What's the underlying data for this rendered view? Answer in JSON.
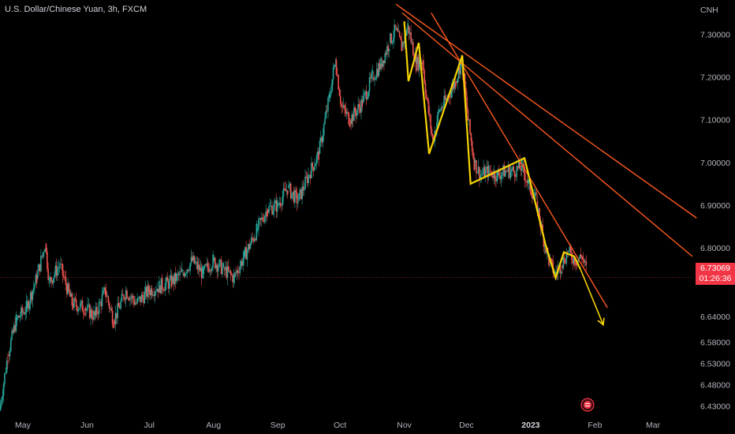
{
  "header": {
    "title": "U.S. Dollar/Chinese Yuan, 3h, FXCM"
  },
  "price_badge": {
    "price": "6.73069",
    "countdown": "01:26:36",
    "color": "#f23645"
  },
  "colors": {
    "background": "#000000",
    "candle_up": "#26a69a",
    "candle_down": "#ef5350",
    "wave": "#f5d300",
    "trendline": "#ff5a1f",
    "axis_text": "#b2b5be",
    "event_icon": "#f23645"
  },
  "icons": {
    "event": "flag-icon"
  },
  "chart_data": {
    "type": "candlestick",
    "title": "U.S. Dollar/Chinese Yuan, 3h, FXCM",
    "y_axis": {
      "unit": "CNH",
      "ticks": [
        "7.30000",
        "7.20000",
        "7.10000",
        "7.00000",
        "6.90000",
        "6.80000",
        "6.73069",
        "6.64000",
        "6.58000",
        "6.53000",
        "6.48000",
        "6.43000"
      ],
      "tick_values": [
        7.3,
        7.2,
        7.1,
        7.0,
        6.9,
        6.8,
        6.73,
        6.64,
        6.58,
        6.53,
        6.48,
        6.43
      ],
      "range": [
        6.42,
        7.38
      ],
      "position": "right"
    },
    "x_axis": {
      "ticks": [
        "May",
        "Jun",
        "Jul",
        "Aug",
        "Sep",
        "Oct",
        "Nov",
        "Dec",
        "2023",
        "Feb",
        "Mar"
      ],
      "tick_dates": [
        "2022-05-01",
        "2022-06-01",
        "2022-07-01",
        "2022-08-01",
        "2022-09-01",
        "2022-10-01",
        "2022-11-01",
        "2022-12-01",
        "2023-01-01",
        "2023-02-01",
        "2023-03-01"
      ],
      "range": [
        "2022-04-20",
        "2023-03-20"
      ]
    },
    "price_path": [
      [
        "2022-04-20",
        6.42
      ],
      [
        "2022-04-24",
        6.55
      ],
      [
        "2022-04-28",
        6.63
      ],
      [
        "2022-05-03",
        6.66
      ],
      [
        "2022-05-08",
        6.73
      ],
      [
        "2022-05-12",
        6.81
      ],
      [
        "2022-05-14",
        6.72
      ],
      [
        "2022-05-19",
        6.76
      ],
      [
        "2022-05-25",
        6.67
      ],
      [
        "2022-05-31",
        6.66
      ],
      [
        "2022-06-05",
        6.64
      ],
      [
        "2022-06-10",
        6.7
      ],
      [
        "2022-06-14",
        6.63
      ],
      [
        "2022-06-20",
        6.7
      ],
      [
        "2022-06-25",
        6.67
      ],
      [
        "2022-07-01",
        6.7
      ],
      [
        "2022-07-06",
        6.71
      ],
      [
        "2022-07-12",
        6.72
      ],
      [
        "2022-07-17",
        6.74
      ],
      [
        "2022-07-22",
        6.77
      ],
      [
        "2022-07-27",
        6.74
      ],
      [
        "2022-08-01",
        6.77
      ],
      [
        "2022-08-06",
        6.75
      ],
      [
        "2022-08-11",
        6.73
      ],
      [
        "2022-08-16",
        6.78
      ],
      [
        "2022-08-22",
        6.84
      ],
      [
        "2022-08-27",
        6.89
      ],
      [
        "2022-09-01",
        6.9
      ],
      [
        "2022-09-06",
        6.94
      ],
      [
        "2022-09-11",
        6.91
      ],
      [
        "2022-09-16",
        6.97
      ],
      [
        "2022-09-21",
        7.02
      ],
      [
        "2022-09-26",
        7.15
      ],
      [
        "2022-09-29",
        7.24
      ],
      [
        "2022-10-02",
        7.13
      ],
      [
        "2022-10-06",
        7.1
      ],
      [
        "2022-10-12",
        7.14
      ],
      [
        "2022-10-17",
        7.2
      ],
      [
        "2022-10-21",
        7.23
      ],
      [
        "2022-10-25",
        7.28
      ],
      [
        "2022-10-28",
        7.31
      ],
      [
        "2022-10-31",
        7.27
      ],
      [
        "2022-11-03",
        7.32
      ],
      [
        "2022-11-07",
        7.23
      ],
      [
        "2022-11-10",
        7.24
      ],
      [
        "2022-11-12",
        7.15
      ],
      [
        "2022-11-15",
        7.05
      ],
      [
        "2022-11-18",
        7.12
      ],
      [
        "2022-11-22",
        7.15
      ],
      [
        "2022-11-26",
        7.19
      ],
      [
        "2022-11-29",
        7.24
      ],
      [
        "2022-12-02",
        7.1
      ],
      [
        "2022-12-05",
        7.0
      ],
      [
        "2022-12-08",
        6.97
      ],
      [
        "2022-12-12",
        6.98
      ],
      [
        "2022-12-16",
        6.97
      ],
      [
        "2022-12-20",
        6.98
      ],
      [
        "2022-12-24",
        6.98
      ],
      [
        "2022-12-28",
        6.99
      ],
      [
        "2022-12-31",
        6.95
      ],
      [
        "2023-01-04",
        6.91
      ],
      [
        "2023-01-07",
        6.83
      ],
      [
        "2023-01-10",
        6.77
      ],
      [
        "2023-01-13",
        6.74
      ],
      [
        "2023-01-16",
        6.76
      ],
      [
        "2023-01-19",
        6.79
      ],
      [
        "2023-01-23",
        6.77
      ],
      [
        "2023-01-26",
        6.78
      ],
      [
        "2023-01-28",
        6.75
      ]
    ],
    "annotations": {
      "wave_path": [
        [
          "2022-11-01",
          7.33
        ],
        [
          "2022-11-03",
          7.19
        ],
        [
          "2022-11-08",
          7.28
        ],
        [
          "2022-11-13",
          7.02
        ],
        [
          "2022-11-29",
          7.25
        ],
        [
          "2022-12-03",
          6.95
        ],
        [
          "2022-12-29",
          7.01
        ],
        [
          "2023-01-08",
          6.81
        ],
        [
          "2023-01-13",
          6.73
        ],
        [
          "2023-01-17",
          6.79
        ],
        [
          "2023-01-22",
          6.78
        ],
        [
          "2023-01-25",
          6.75
        ]
      ],
      "projection": {
        "from": [
          "2023-01-25",
          6.75
        ],
        "to": [
          "2023-02-05",
          6.62
        ]
      },
      "trendlines": [
        {
          "from": [
            "2022-10-28",
            7.37
          ],
          "to": [
            "2023-03-22",
            6.87
          ]
        },
        {
          "from": [
            "2022-10-31",
            7.35
          ],
          "to": [
            "2023-03-20",
            6.78
          ]
        },
        {
          "from": [
            "2022-11-14",
            7.35
          ],
          "to": [
            "2023-02-07",
            6.66
          ]
        }
      ],
      "current_price_line": 6.73069
    }
  }
}
